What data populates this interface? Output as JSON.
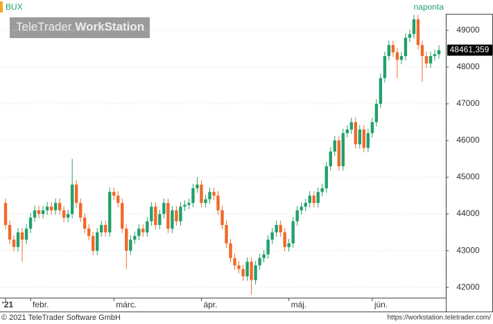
{
  "chart_data": {
    "type": "candlestick",
    "title": "BUX",
    "interval": "naponta",
    "logo": {
      "brand": "TeleTrader",
      "product": "WorkStation"
    },
    "footer_left": "© 2021 TeleTrader Software GmbH",
    "footer_right": "https://workstation.teletrader.com/",
    "ylim": [
      41720,
      49450
    ],
    "yticks": [
      42000,
      43000,
      44000,
      45000,
      46000,
      47000,
      48000,
      49000
    ],
    "grid": true,
    "up_color": "#22a06b",
    "down_color": "#f0692a",
    "xlabels": [
      {
        "index": 0,
        "label": "'21"
      },
      {
        "index": 6,
        "label": "febr."
      },
      {
        "index": 26,
        "label": "márc."
      },
      {
        "index": 47,
        "label": "ápr."
      },
      {
        "index": 68,
        "label": "máj."
      },
      {
        "index": 88,
        "label": "jún."
      }
    ],
    "last_label": "48461,359",
    "open": [
      44300,
      43700,
      43300,
      43100,
      43500,
      43300,
      43600,
      43900,
      44100,
      44000,
      44100,
      44200,
      44100,
      44300,
      44100,
      43900,
      44000,
      44800,
      44300,
      43900,
      43600,
      43400,
      43000,
      43500,
      43700,
      43500,
      44600,
      44500,
      44300,
      43600,
      43000,
      43300,
      43400,
      43600,
      43500,
      43800,
      44200,
      43700,
      44000,
      44300,
      43600,
      44100,
      43800,
      44200,
      44250,
      44300,
      44700,
      44800,
      44300,
      44400,
      44600,
      44500,
      44100,
      43700,
      43200,
      42800,
      42600,
      42500,
      42300,
      42700,
      42200,
      42600,
      42800,
      42900,
      43300,
      43500,
      43700,
      43500,
      43100,
      43200,
      43800,
      44100,
      44200,
      44300,
      44500,
      44300,
      44600,
      44700,
      45300,
      45700,
      46000,
      45300,
      46200,
      46300,
      46500,
      45900,
      46300,
      45800,
      46200,
      46500,
      47000,
      47700,
      48300,
      48600,
      48400,
      48200,
      48300,
      48800,
      48900,
      49300,
      48600,
      48300,
      48100,
      48300,
      48350
    ],
    "high": [
      44420,
      43820,
      43420,
      43620,
      43620,
      43720,
      44020,
      44220,
      44220,
      44220,
      44320,
      44320,
      44420,
      44420,
      44220,
      44120,
      45500,
      44920,
      44420,
      44020,
      43720,
      43520,
      43620,
      43820,
      43820,
      44720,
      44720,
      44620,
      44420,
      43720,
      43420,
      43520,
      43720,
      43720,
      43920,
      44320,
      44320,
      44120,
      44420,
      44420,
      44220,
      44220,
      44320,
      44370,
      44420,
      44820,
      45000,
      44920,
      44520,
      44720,
      44720,
      44620,
      44220,
      43820,
      43320,
      42920,
      42720,
      42620,
      42820,
      42820,
      42720,
      42920,
      43020,
      43420,
      43620,
      43820,
      43820,
      43620,
      43320,
      43920,
      44220,
      44320,
      44420,
      44620,
      44620,
      44720,
      44820,
      45420,
      45820,
      46120,
      46120,
      46320,
      46420,
      46620,
      46620,
      46420,
      46420,
      46320,
      46620,
      47120,
      47820,
      48420,
      48720,
      48720,
      48520,
      48420,
      48920,
      49020,
      49420,
      49420,
      48720,
      48420,
      48420,
      48470,
      48600
    ],
    "low": [
      43580,
      43180,
      42980,
      42980,
      42700,
      43180,
      43480,
      43780,
      43880,
      43880,
      43980,
      43980,
      43980,
      43980,
      43780,
      43780,
      43880,
      44180,
      43780,
      43480,
      43280,
      42880,
      42880,
      43380,
      43380,
      43380,
      44380,
      44180,
      43480,
      42500,
      42880,
      43180,
      43280,
      43380,
      43380,
      43680,
      43580,
      43580,
      43880,
      43480,
      43480,
      43680,
      43680,
      44080,
      44130,
      44180,
      44580,
      44180,
      44180,
      44280,
      44380,
      43980,
      43580,
      43080,
      42680,
      42480,
      42380,
      42180,
      42180,
      41800,
      42080,
      42480,
      42680,
      42780,
      43180,
      43380,
      43380,
      42980,
      42980,
      43080,
      43680,
      43980,
      44080,
      44180,
      44180,
      44180,
      44480,
      44580,
      45180,
      45580,
      45180,
      45180,
      46080,
      46180,
      45780,
      45780,
      45680,
      45680,
      46080,
      46380,
      46880,
      47580,
      48180,
      48280,
      47700,
      48080,
      48180,
      48680,
      48780,
      48480,
      47600,
      47980,
      47980,
      48180,
      48230
    ],
    "close": [
      43700,
      43300,
      43100,
      43500,
      43300,
      43600,
      43900,
      44100,
      44000,
      44100,
      44200,
      44100,
      44300,
      44100,
      43900,
      44000,
      44800,
      44300,
      43900,
      43600,
      43400,
      43000,
      43500,
      43700,
      43500,
      44600,
      44500,
      44300,
      43600,
      43000,
      43300,
      43400,
      43600,
      43500,
      43800,
      44200,
      43700,
      44000,
      44300,
      43600,
      44100,
      43800,
      44200,
      44250,
      44300,
      44700,
      44800,
      44300,
      44400,
      44600,
      44500,
      44100,
      43700,
      43200,
      42800,
      42600,
      42500,
      42300,
      42700,
      42200,
      42600,
      42800,
      42900,
      43300,
      43500,
      43700,
      43500,
      43100,
      43200,
      43800,
      44100,
      44200,
      44300,
      44500,
      44300,
      44600,
      44700,
      45300,
      45700,
      46000,
      45300,
      46200,
      46300,
      46500,
      45900,
      46300,
      45800,
      46200,
      46500,
      47000,
      47700,
      48300,
      48600,
      48400,
      48200,
      48300,
      48800,
      48900,
      49300,
      48600,
      48300,
      48100,
      48300,
      48350,
      48461.359
    ]
  }
}
